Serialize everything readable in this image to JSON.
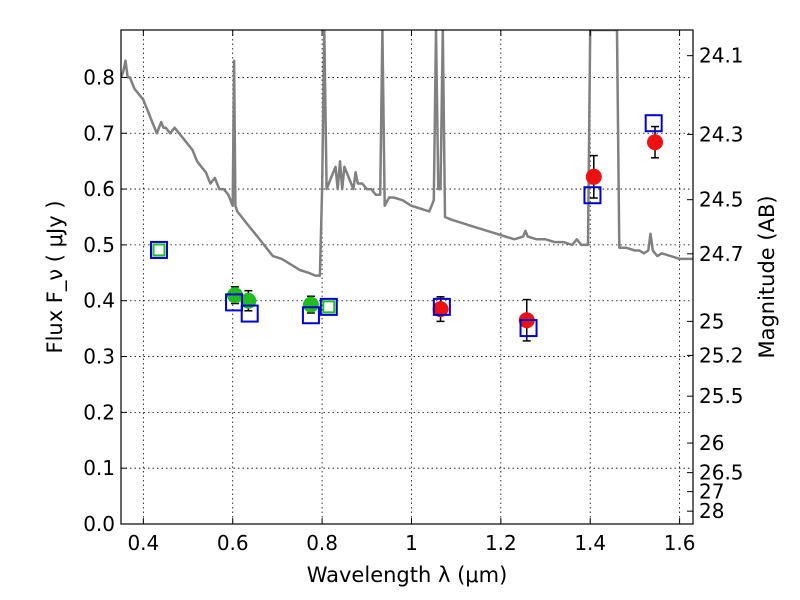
{
  "chart_data": {
    "type": "scatter",
    "xlabel": "Wavelength  λ (μm)",
    "ylabel": "Flux  F_ν  ( μJy )",
    "ylabel_right": "Magnitude (AB)",
    "xlim": [
      0.35,
      1.63
    ],
    "ylim": [
      0.0,
      0.885
    ],
    "grid": true,
    "x_ticks": [
      {
        "value": 0.4,
        "label": "0.4"
      },
      {
        "value": 0.6,
        "label": "0.6"
      },
      {
        "value": 0.8,
        "label": "0.8"
      },
      {
        "value": 1.0,
        "label": "1"
      },
      {
        "value": 1.2,
        "label": "1.2"
      },
      {
        "value": 1.4,
        "label": "1.4"
      },
      {
        "value": 1.6,
        "label": "1.6"
      }
    ],
    "y_ticks": [
      {
        "value": 0.0,
        "label": "0.0"
      },
      {
        "value": 0.1,
        "label": "0.1"
      },
      {
        "value": 0.2,
        "label": "0.2"
      },
      {
        "value": 0.3,
        "label": "0.3"
      },
      {
        "value": 0.4,
        "label": "0.4"
      },
      {
        "value": 0.5,
        "label": "0.5"
      },
      {
        "value": 0.6,
        "label": "0.6"
      },
      {
        "value": 0.7,
        "label": "0.7"
      },
      {
        "value": 0.8,
        "label": "0.8"
      }
    ],
    "right_ticks": [
      {
        "flux": 0.839,
        "label": "24.1"
      },
      {
        "flux": 0.698,
        "label": "24.3"
      },
      {
        "flux": 0.581,
        "label": "24.5"
      },
      {
        "flux": 0.484,
        "label": "24.7"
      },
      {
        "flux": 0.363,
        "label": "25"
      },
      {
        "flux": 0.302,
        "label": "25.2"
      },
      {
        "flux": 0.229,
        "label": "25.5"
      },
      {
        "flux": 0.145,
        "label": "26"
      },
      {
        "flux": 0.092,
        "label": "26.5"
      },
      {
        "flux": 0.058,
        "label": "27"
      },
      {
        "flux": 0.023,
        "label": "28"
      }
    ],
    "model_spectrum": {
      "color": "#808080",
      "points": [
        [
          0.35,
          0.8
        ],
        [
          0.355,
          0.81
        ],
        [
          0.36,
          0.83
        ],
        [
          0.365,
          0.8
        ],
        [
          0.37,
          0.8
        ],
        [
          0.38,
          0.78
        ],
        [
          0.39,
          0.77
        ],
        [
          0.4,
          0.76
        ],
        [
          0.41,
          0.74
        ],
        [
          0.415,
          0.73
        ],
        [
          0.42,
          0.72
        ],
        [
          0.425,
          0.71
        ],
        [
          0.43,
          0.7
        ],
        [
          0.44,
          0.72
        ],
        [
          0.445,
          0.71
        ],
        [
          0.45,
          0.71
        ],
        [
          0.46,
          0.7
        ],
        [
          0.47,
          0.71
        ],
        [
          0.48,
          0.7
        ],
        [
          0.49,
          0.69
        ],
        [
          0.5,
          0.68
        ],
        [
          0.51,
          0.67
        ],
        [
          0.52,
          0.65
        ],
        [
          0.53,
          0.64
        ],
        [
          0.54,
          0.63
        ],
        [
          0.545,
          0.62
        ],
        [
          0.55,
          0.61
        ],
        [
          0.56,
          0.62
        ],
        [
          0.57,
          0.6
        ],
        [
          0.58,
          0.6
        ],
        [
          0.59,
          0.59
        ],
        [
          0.595,
          0.58
        ],
        [
          0.6,
          0.57
        ],
        [
          0.603,
          0.83
        ],
        [
          0.606,
          0.57
        ],
        [
          0.61,
          0.56
        ],
        [
          0.62,
          0.55
        ],
        [
          0.63,
          0.54
        ],
        [
          0.65,
          0.52
        ],
        [
          0.67,
          0.5
        ],
        [
          0.69,
          0.48
        ],
        [
          0.71,
          0.475
        ],
        [
          0.73,
          0.465
        ],
        [
          0.75,
          0.455
        ],
        [
          0.77,
          0.45
        ],
        [
          0.785,
          0.445
        ],
        [
          0.795,
          0.445
        ],
        [
          0.8,
          0.6
        ],
        [
          0.805,
          0.885
        ],
        [
          0.81,
          0.6
        ],
        [
          0.815,
          0.61
        ],
        [
          0.82,
          0.62
        ],
        [
          0.83,
          0.64
        ],
        [
          0.835,
          0.6
        ],
        [
          0.84,
          0.65
        ],
        [
          0.845,
          0.6
        ],
        [
          0.85,
          0.64
        ],
        [
          0.86,
          0.62
        ],
        [
          0.87,
          0.6
        ],
        [
          0.875,
          0.63
        ],
        [
          0.88,
          0.61
        ],
        [
          0.89,
          0.61
        ],
        [
          0.9,
          0.6
        ],
        [
          0.91,
          0.6
        ],
        [
          0.92,
          0.59
        ],
        [
          0.93,
          0.59
        ],
        [
          0.935,
          0.885
        ],
        [
          0.94,
          0.57
        ],
        [
          0.95,
          0.585
        ],
        [
          0.96,
          0.585
        ],
        [
          0.98,
          0.58
        ],
        [
          1.0,
          0.57
        ],
        [
          1.02,
          0.565
        ],
        [
          1.04,
          0.56
        ],
        [
          1.05,
          0.58
        ],
        [
          1.055,
          0.885
        ],
        [
          1.06,
          0.6
        ],
        [
          1.065,
          0.6
        ],
        [
          1.07,
          0.885
        ],
        [
          1.075,
          0.55
        ],
        [
          1.09,
          0.545
        ],
        [
          1.11,
          0.54
        ],
        [
          1.13,
          0.535
        ],
        [
          1.15,
          0.53
        ],
        [
          1.17,
          0.525
        ],
        [
          1.19,
          0.52
        ],
        [
          1.21,
          0.515
        ],
        [
          1.23,
          0.51
        ],
        [
          1.25,
          0.515
        ],
        [
          1.255,
          0.525
        ],
        [
          1.26,
          0.515
        ],
        [
          1.28,
          0.51
        ],
        [
          1.3,
          0.51
        ],
        [
          1.32,
          0.505
        ],
        [
          1.34,
          0.505
        ],
        [
          1.36,
          0.5
        ],
        [
          1.37,
          0.51
        ],
        [
          1.38,
          0.5
        ],
        [
          1.395,
          0.5
        ],
        [
          1.4,
          0.885
        ],
        [
          1.405,
          0.885
        ],
        [
          1.42,
          0.885
        ],
        [
          1.44,
          0.885
        ],
        [
          1.46,
          0.885
        ],
        [
          1.465,
          0.495
        ],
        [
          1.48,
          0.495
        ],
        [
          1.5,
          0.49
        ],
        [
          1.51,
          0.49
        ],
        [
          1.52,
          0.485
        ],
        [
          1.53,
          0.49
        ],
        [
          1.535,
          0.52
        ],
        [
          1.54,
          0.49
        ],
        [
          1.55,
          0.48
        ],
        [
          1.56,
          0.485
        ],
        [
          1.58,
          0.48
        ],
        [
          1.6,
          0.475
        ],
        [
          1.62,
          0.475
        ],
        [
          1.63,
          0.475
        ]
      ]
    },
    "series": [
      {
        "marker": "circle",
        "color": "#22bb22",
        "points": [
          {
            "x": 0.605,
            "y": 0.41,
            "err": 0.015
          },
          {
            "x": 0.635,
            "y": 0.4,
            "err": 0.018
          },
          {
            "x": 0.775,
            "y": 0.393,
            "err": 0.015
          }
        ]
      },
      {
        "marker": "circle",
        "color": "#ee1111",
        "points": [
          {
            "x": 1.065,
            "y": 0.385,
            "err": 0.022
          },
          {
            "x": 1.258,
            "y": 0.365,
            "err": 0.037
          },
          {
            "x": 1.408,
            "y": 0.622,
            "err": 0.038
          },
          {
            "x": 1.545,
            "y": 0.684,
            "err": 0.028
          }
        ]
      },
      {
        "marker": "square",
        "color": "#0000cc",
        "points": [
          {
            "x": 0.435,
            "y": 0.491
          },
          {
            "x": 0.603,
            "y": 0.397
          },
          {
            "x": 0.638,
            "y": 0.377
          },
          {
            "x": 0.775,
            "y": 0.374
          },
          {
            "x": 0.815,
            "y": 0.389
          },
          {
            "x": 1.068,
            "y": 0.389
          },
          {
            "x": 1.262,
            "y": 0.351
          },
          {
            "x": 1.405,
            "y": 0.589
          },
          {
            "x": 1.542,
            "y": 0.718
          }
        ]
      },
      {
        "marker": "square-small",
        "color": "#22bb22",
        "points": [
          {
            "x": 0.435,
            "y": 0.491
          },
          {
            "x": 0.815,
            "y": 0.389
          }
        ]
      }
    ]
  }
}
